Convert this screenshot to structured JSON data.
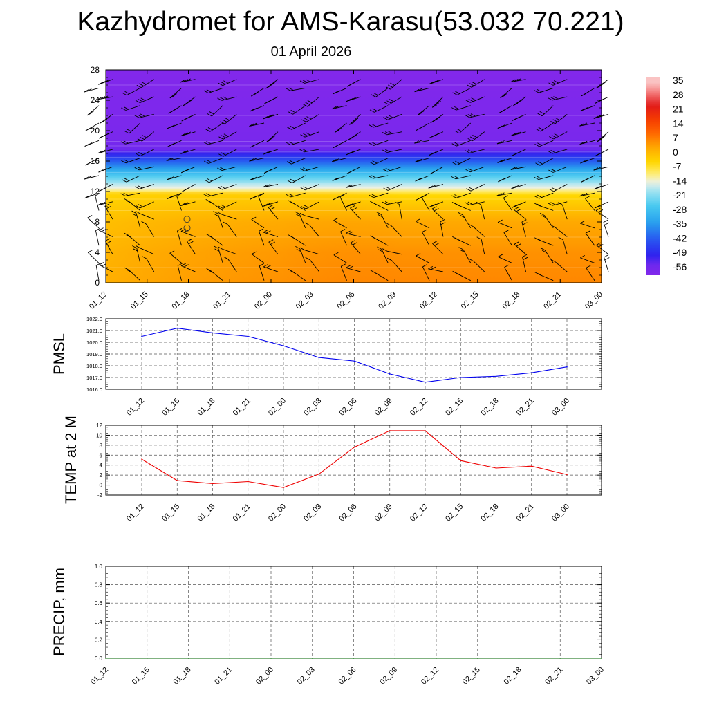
{
  "header": {
    "title": "Kazhydromet for AMS-Karasu(53.032 70.221)",
    "date": "01 April 2026"
  },
  "colors": {
    "pmsl_line": "#0000ee",
    "temp_line": "#ee0000",
    "precip_line": "#006400",
    "barb": "#000000"
  },
  "chart_data": [
    {
      "type": "heatmap",
      "title": "Kazhydromet for AMS-Karasu(53.032 70.221)",
      "subtitle": "01 April 2026",
      "x": [
        "01_12",
        "01_15",
        "01_18",
        "01_21",
        "02_00",
        "02_03",
        "02_06",
        "02_09",
        "02_12",
        "02_15",
        "02_18",
        "02_21",
        "03_00"
      ],
      "y_ticks": [
        0,
        4,
        8,
        12,
        16,
        20,
        24,
        28
      ],
      "ylim": [
        0,
        28
      ],
      "colorbar_labels": [
        "35",
        "28",
        "21",
        "14",
        "7",
        "0",
        "-7",
        "-14",
        "-21",
        "-28",
        "-35",
        "-42",
        "-49",
        "-56"
      ],
      "temperature_profile": [
        {
          "level": 0,
          "value": 7
        },
        {
          "level": 4,
          "value": 6
        },
        {
          "level": 8,
          "value": 3
        },
        {
          "level": 11.5,
          "value": -4
        },
        {
          "level": 12.5,
          "value": -14
        },
        {
          "level": 14,
          "value": -25
        },
        {
          "level": 16,
          "value": -42
        },
        {
          "level": 17.5,
          "value": -55
        },
        {
          "level": 19,
          "value": -58
        },
        {
          "level": 28,
          "value": -60
        }
      ],
      "overlay": "wind barbs",
      "grid": false
    },
    {
      "type": "line",
      "ylabel": "PMSL",
      "x": [
        "01_12",
        "01_15",
        "01_18",
        "01_21",
        "02_00",
        "02_03",
        "02_06",
        "02_09",
        "02_12",
        "02_15",
        "02_18",
        "02_21",
        "03_00"
      ],
      "y_ticks": [
        "1016.0",
        "1017.0",
        "1018.0",
        "1019.0",
        "1020.0",
        "1021.0",
        "1022.0"
      ],
      "ylim": [
        1016,
        1022
      ],
      "series": [
        {
          "values": [
            1020.5,
            1021.2,
            1020.8,
            1020.5,
            1019.7,
            1018.7,
            1018.4,
            1017.3,
            1016.6,
            1017.0,
            1017.1,
            1017.4,
            1017.9
          ]
        }
      ],
      "grid": true
    },
    {
      "type": "line",
      "ylabel": "TEMP at 2 M",
      "x": [
        "01_12",
        "01_15",
        "01_18",
        "01_21",
        "02_00",
        "02_03",
        "02_06",
        "02_09",
        "02_12",
        "02_15",
        "02_18",
        "02_21",
        "03_00"
      ],
      "y_ticks": [
        "-2",
        "0",
        "2",
        "4",
        "6",
        "8",
        "10",
        "12"
      ],
      "ylim": [
        -2,
        12
      ],
      "series": [
        {
          "values": [
            5.2,
            0.9,
            0.3,
            0.7,
            -0.5,
            2.2,
            7.6,
            10.9,
            10.9,
            4.9,
            3.4,
            3.8,
            2.1
          ]
        }
      ],
      "grid": true
    },
    {
      "type": "line",
      "ylabel": "PRECIP, mm",
      "x": [
        "01_12",
        "01_15",
        "01_18",
        "01_21",
        "02_00",
        "02_03",
        "02_06",
        "02_09",
        "02_12",
        "02_15",
        "02_18",
        "02_21",
        "03_00"
      ],
      "y_ticks": [
        "0.0",
        "0.2",
        "0.4",
        "0.6",
        "0.8",
        "1.0"
      ],
      "ylim": [
        0,
        1
      ],
      "series": [
        {
          "values": [
            0,
            0,
            0,
            0,
            0,
            0,
            0,
            0,
            0,
            0,
            0,
            0,
            0
          ]
        }
      ],
      "grid": true
    }
  ]
}
